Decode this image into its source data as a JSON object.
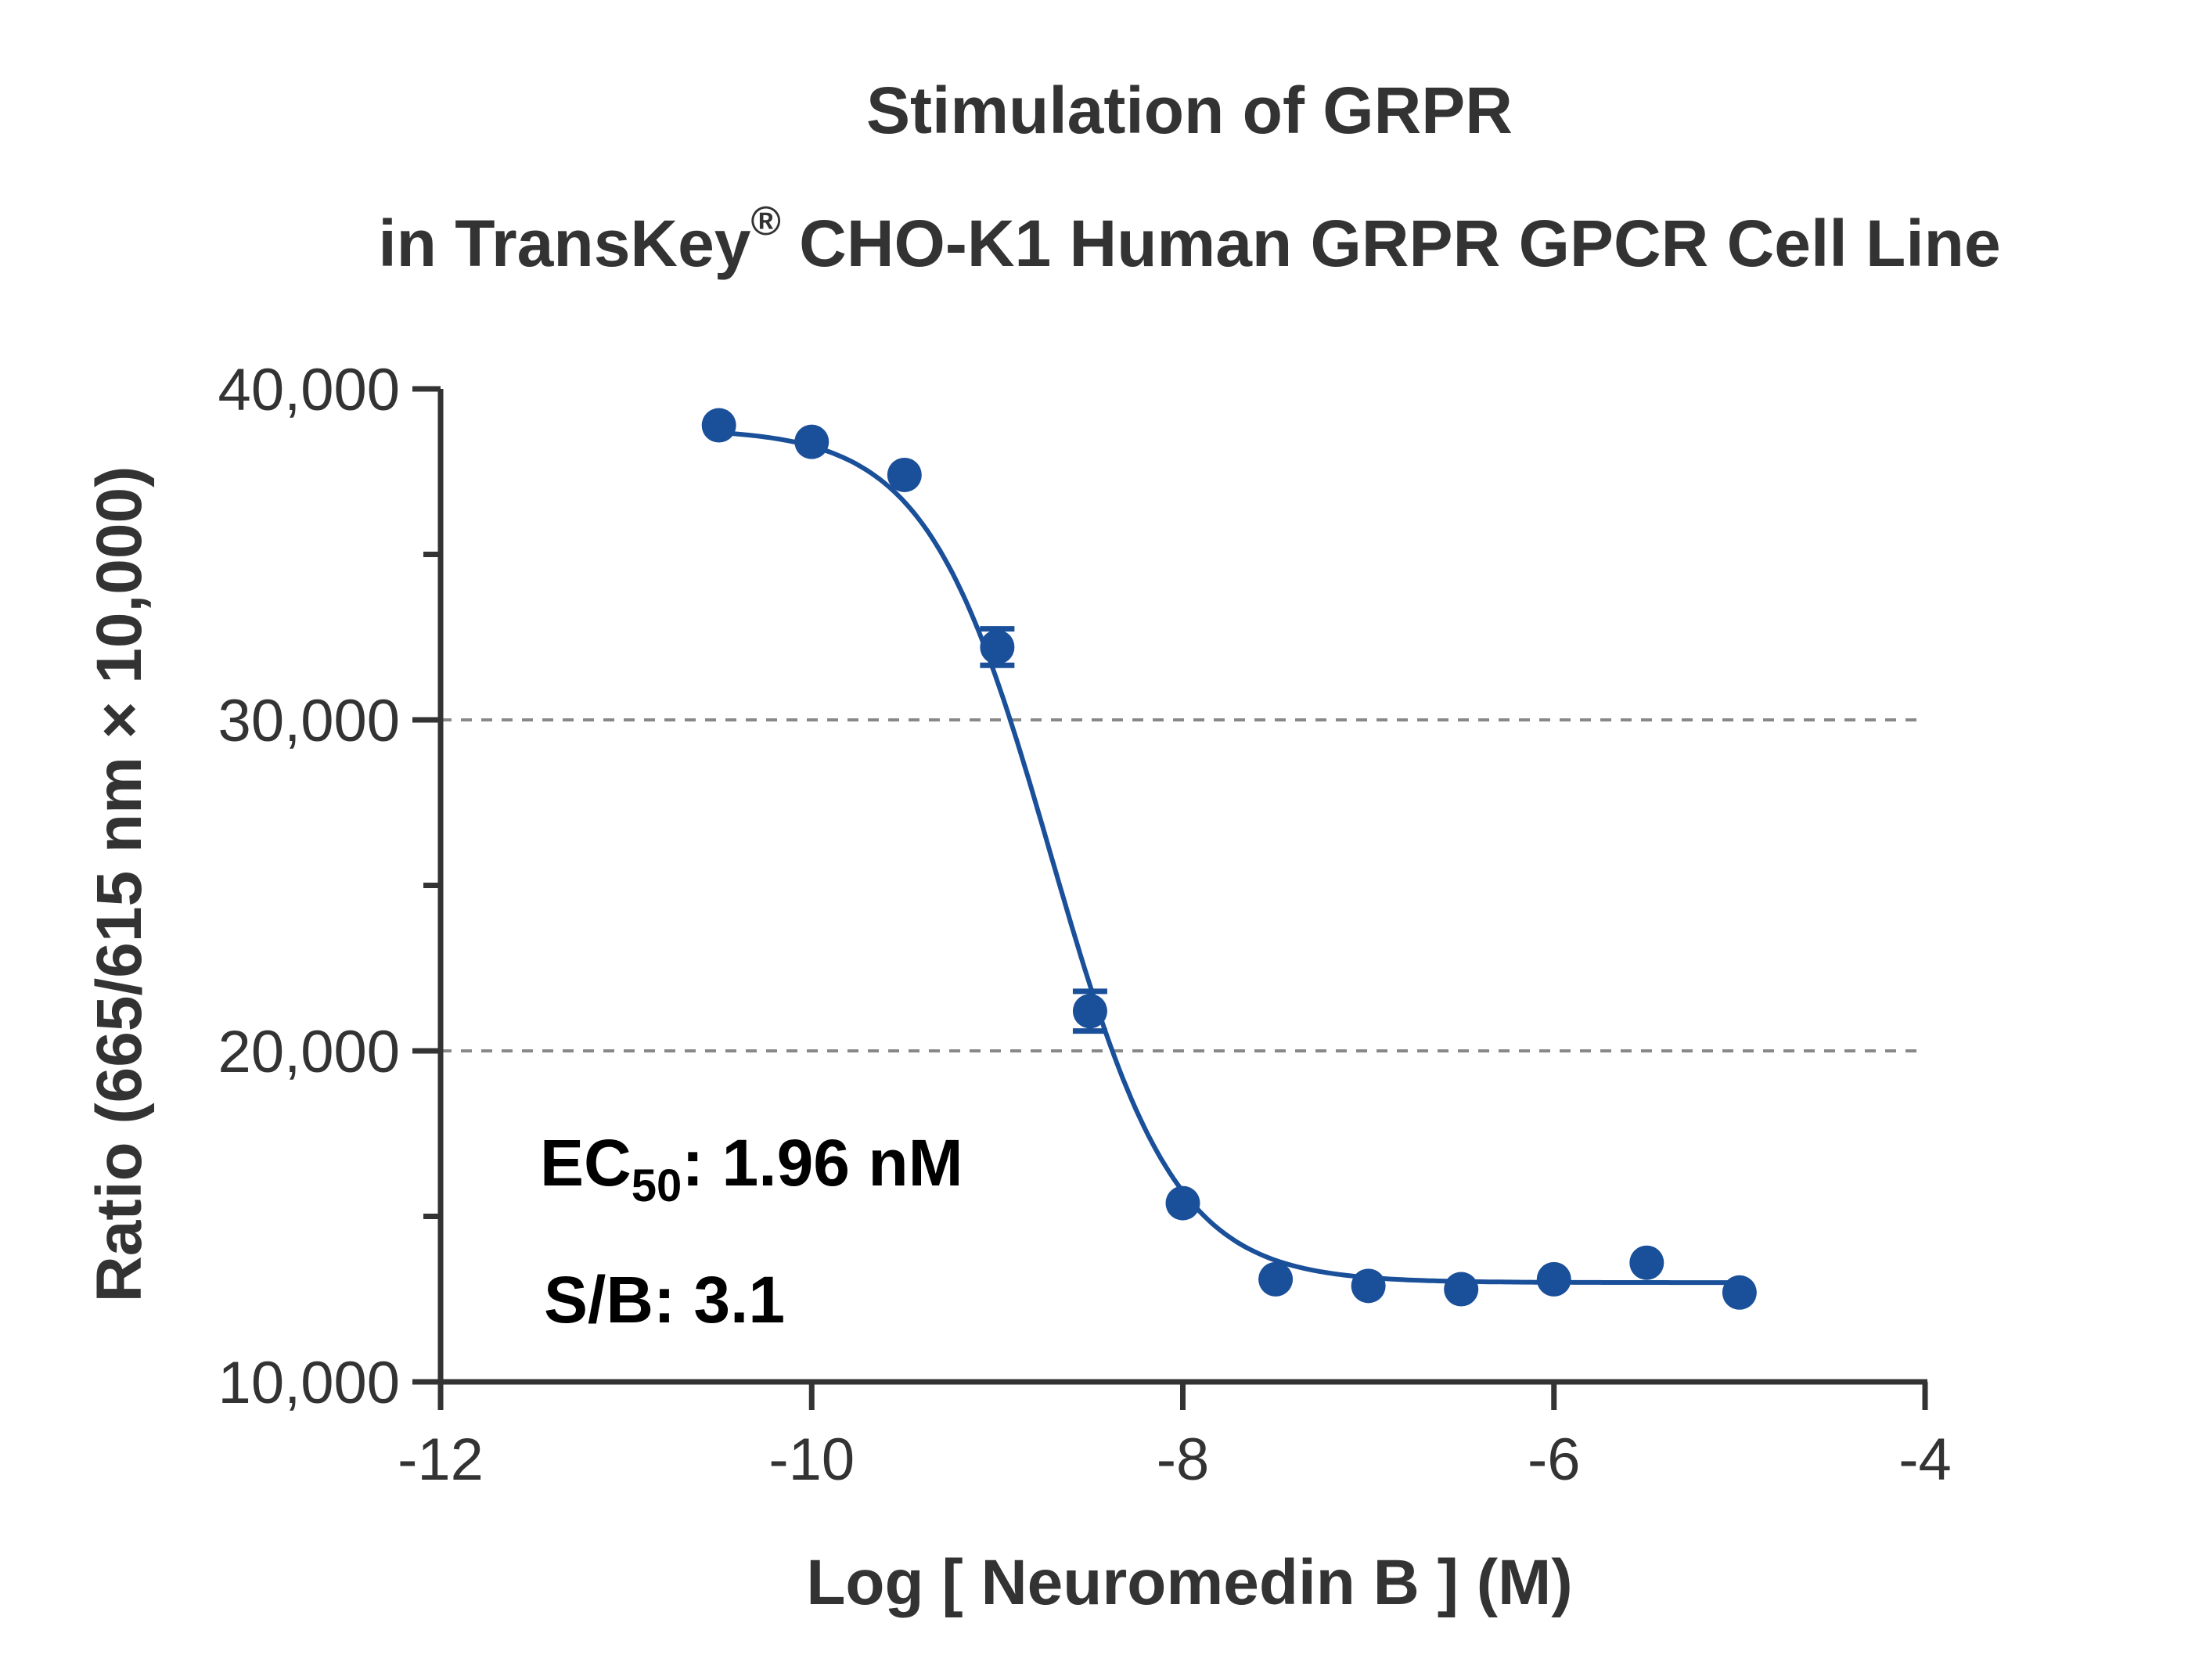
{
  "chart_data": {
    "type": "scatter",
    "title_line1": "Stimulation of  GRPR",
    "title_line2_pre": "in TransKey",
    "title_line2_sup": "®",
    "title_line2_post": " CHO-K1 Human GRPR GPCR Cell Line",
    "xlabel": "Log [ Neuromedin B ]  (M)",
    "ylabel": "Ratio (665/615 nm × 10,000)",
    "xlim": [
      -12,
      -4
    ],
    "ylim": [
      10000,
      40000
    ],
    "x_ticks": [
      -12,
      -10,
      -8,
      -6,
      -4
    ],
    "x_tick_labels": [
      "-12",
      "-10",
      "-8",
      "-6",
      "-4"
    ],
    "y_ticks": [
      10000,
      20000,
      30000,
      40000
    ],
    "y_tick_labels": [
      "10,000",
      "20,000",
      "30,000",
      "40,000"
    ],
    "y_minor_ticks": [
      15000,
      25000,
      35000
    ],
    "gridlines_y": [
      20000,
      30000
    ],
    "series": [
      {
        "color": "#1a4f99",
        "x": [
          -10.5,
          -10,
          -9.5,
          -9,
          -8.5,
          -8,
          -7.5,
          -7,
          -6.5,
          -6,
          -5.5,
          -5
        ],
        "y": [
          38900,
          38400,
          37400,
          32200,
          21200,
          15400,
          13100,
          12900,
          12800,
          13100,
          13600,
          12700
        ],
        "error": [
          0,
          0,
          0,
          550,
          600,
          0,
          0,
          0,
          0,
          0,
          0,
          0
        ]
      }
    ],
    "fit": {
      "color": "#1a4f99",
      "bottom": 13000,
      "top": 38800,
      "log_ec50": -8.71,
      "hill_slope": -1.3
    },
    "annotations": {
      "ec50_prefix": "EC",
      "ec50_sub": "50",
      "ec50_value": ": 1.96 nM",
      "sb": "S/B: 3.1"
    }
  }
}
